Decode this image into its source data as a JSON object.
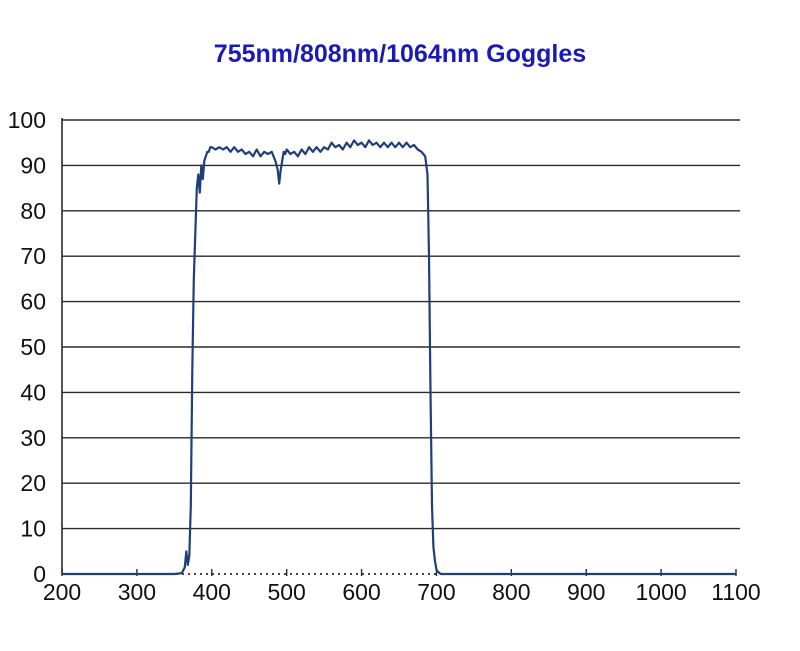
{
  "colors": {
    "title": "#1a1ab8",
    "line": "#1f3e7a",
    "grid": "#2a2a2a",
    "axis": "#2a2a2a"
  },
  "chart_data": {
    "type": "line",
    "title": "755nm/808nm/1064nm Goggles",
    "xlabel": "",
    "ylabel": "",
    "xlim": [
      200,
      1100
    ],
    "ylim": [
      0,
      100
    ],
    "xticks": [
      "200",
      "300",
      "400",
      "500",
      "600",
      "700",
      "800",
      "900",
      "1000",
      "1100"
    ],
    "yticks": [
      "0",
      "10",
      "20",
      "30",
      "40",
      "50",
      "60",
      "70",
      "80",
      "90",
      "100"
    ],
    "grid": "horizontal",
    "legend": "none",
    "series": [
      {
        "x": [
          200,
          300,
          350,
          360,
          364,
          366,
          368,
          370,
          372,
          374,
          376,
          378,
          380,
          382,
          384,
          386,
          388,
          390,
          392,
          394,
          396,
          398,
          400,
          405,
          410,
          415,
          420,
          425,
          430,
          435,
          440,
          445,
          450,
          455,
          460,
          465,
          470,
          475,
          480,
          485,
          488,
          490,
          492,
          494,
          496,
          498,
          500,
          505,
          510,
          515,
          520,
          525,
          530,
          535,
          540,
          545,
          550,
          555,
          560,
          565,
          570,
          575,
          580,
          585,
          590,
          595,
          600,
          605,
          610,
          615,
          620,
          625,
          630,
          635,
          640,
          645,
          650,
          655,
          660,
          665,
          670,
          675,
          680,
          685,
          688,
          690,
          692,
          694,
          696,
          698,
          700,
          702,
          704,
          706,
          710,
          720,
          800,
          900,
          1000,
          1100
        ],
        "y": [
          0,
          0,
          0,
          0.2,
          1.5,
          5,
          2,
          4,
          15,
          45,
          65,
          75,
          85,
          88,
          84,
          90,
          87,
          91,
          92,
          93,
          93,
          94,
          94,
          93.5,
          94,
          93.5,
          94,
          93,
          94,
          93,
          93.5,
          92.5,
          93,
          92,
          93.5,
          92,
          93,
          92.5,
          93,
          91,
          89,
          86,
          89,
          91,
          93,
          92.5,
          93.5,
          92.5,
          93,
          92,
          93.5,
          92.5,
          94,
          93,
          94,
          93,
          94,
          93.5,
          95,
          94,
          94.5,
          93.5,
          95,
          94,
          95.5,
          94.5,
          95,
          94,
          95.5,
          94.5,
          95,
          94,
          95,
          94,
          95,
          94,
          95,
          94,
          95,
          94,
          94.5,
          93.5,
          93,
          92,
          88,
          70,
          40,
          15,
          6,
          3,
          1,
          0.5,
          0.2,
          0,
          0,
          0,
          0,
          0,
          0,
          0
        ]
      }
    ]
  }
}
